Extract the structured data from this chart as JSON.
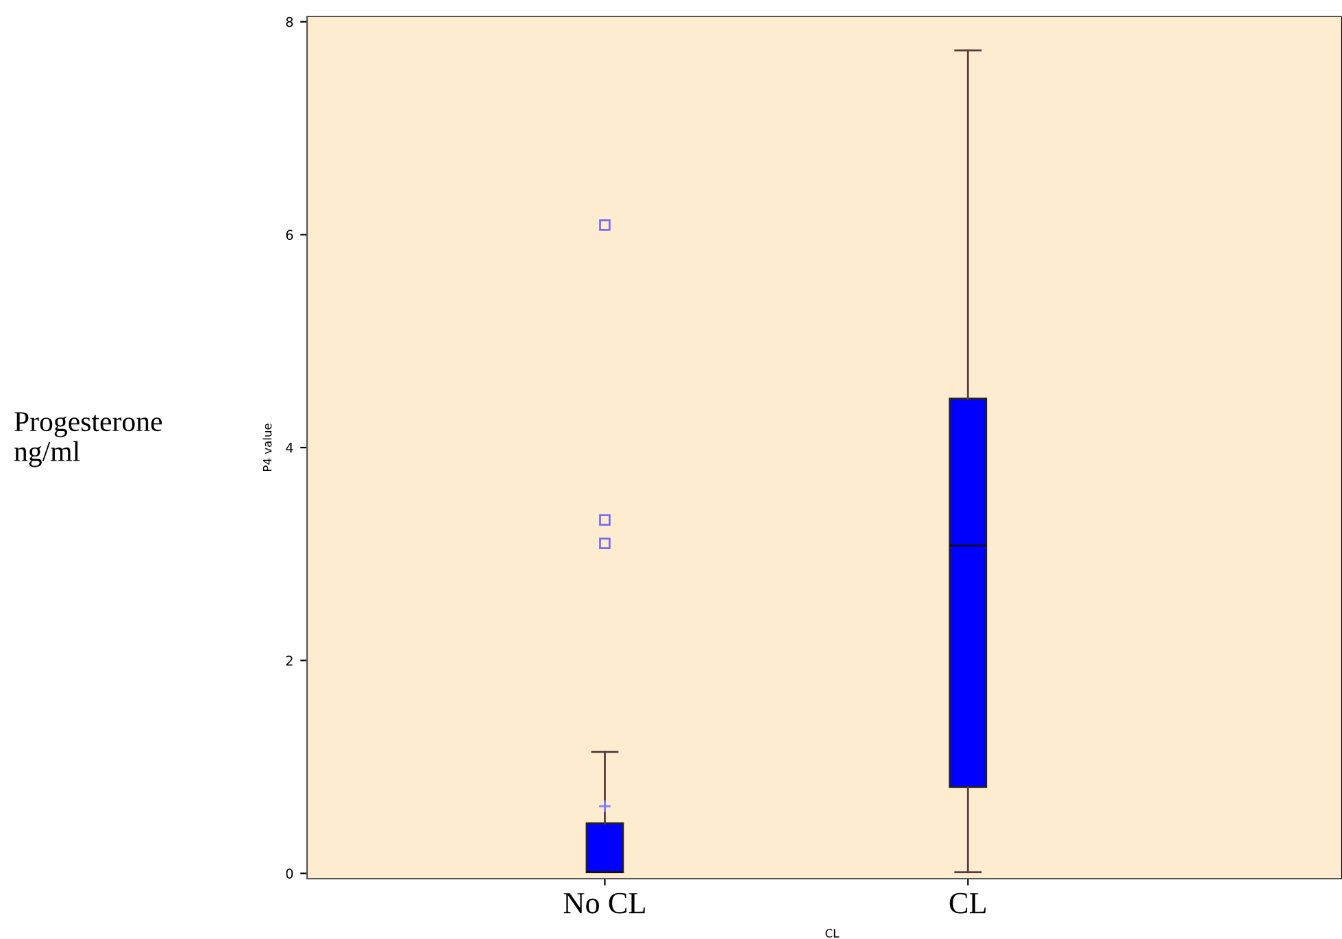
{
  "chart_data": {
    "type": "box",
    "ylabel": "P4 value",
    "xlabel": "CL",
    "categories": [
      "No CL",
      "CL"
    ],
    "boxes": [
      {
        "low": 0.01,
        "q1": 0.01,
        "median": 0.01,
        "q3": 0.47,
        "high": 1.14,
        "mean": 0.63,
        "outliers": [
          6.09,
          3.32,
          3.1
        ]
      },
      {
        "low": 0.01,
        "q1": 0.81,
        "median": 3.08,
        "q3": 4.46,
        "high": 7.73
      }
    ],
    "color": "#0000ff",
    "ylim": [
      -0.05,
      8.05
    ],
    "yticks": [
      0,
      2,
      4,
      6,
      8
    ],
    "grid": false,
    "legend": false,
    "annotations": [
      "Progesterone\nng/ml"
    ]
  }
}
